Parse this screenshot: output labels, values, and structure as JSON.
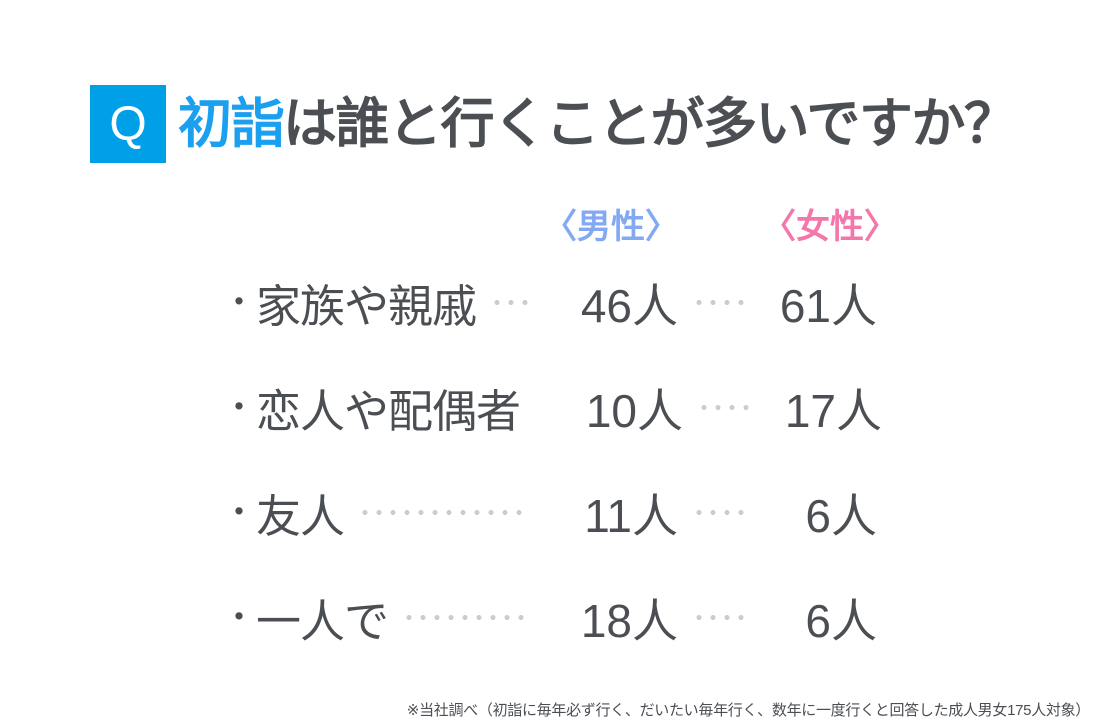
{
  "header": {
    "badge": "Q",
    "title_highlight": "初詣",
    "title_rest": "は誰と行くことが多いですか？"
  },
  "table": {
    "bullet": "・",
    "columns": [
      {
        "key": "male",
        "label": "〈男性〉",
        "color": "#84a9f3"
      },
      {
        "key": "female",
        "label": "〈女性〉",
        "color": "#f477ab"
      }
    ],
    "rows": [
      {
        "label": "家族や親戚",
        "male": "46人",
        "female": "61人"
      },
      {
        "label": "恋人や配偶者",
        "male": "10人",
        "female": "17人"
      },
      {
        "label": "友人",
        "male": "11人",
        "female": "6人"
      },
      {
        "label": "一人で",
        "male": "18人",
        "female": "6人"
      }
    ]
  },
  "footnote": "※当社調べ（初詣に毎年必ず行く、だいたい毎年行く、数年に一度行くと回答した成人男女175人対象）",
  "colors": {
    "badge_blue": "#00a0e9",
    "title_highlight_blue": "#1b9fef",
    "male_blue": "#84a9f3",
    "female_pink": "#f477ab",
    "text_gray": "#4b4e53",
    "dot_gray": "#c9cdd3",
    "background": "#ffffff"
  },
  "chart_data": {
    "type": "table",
    "title": "初詣は誰と行くことが多いですか？",
    "categories": [
      "家族や親戚",
      "恋人や配偶者",
      "友人",
      "一人で"
    ],
    "series": [
      {
        "name": "男性",
        "values": [
          46,
          10,
          11,
          18
        ]
      },
      {
        "name": "女性",
        "values": [
          61,
          17,
          6,
          6
        ]
      }
    ],
    "unit": "人",
    "sample_size": 175,
    "note": "※当社調べ（初詣に毎年必ず行く、だいたい毎年行く、数年に一度行くと回答した成人男女175人対象）"
  }
}
